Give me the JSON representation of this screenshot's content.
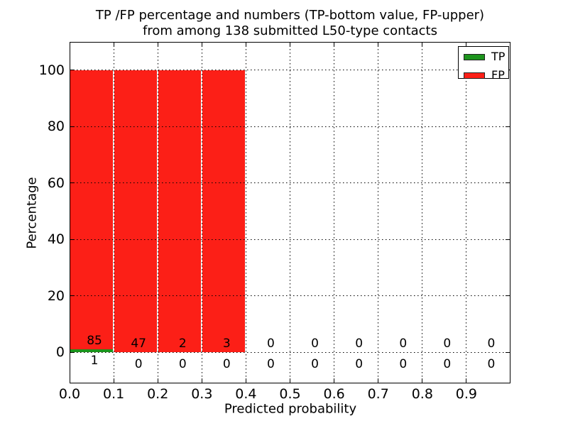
{
  "title_lines": [
    "TP /FP percentage and numbers (TP-bottom value, FP-upper)",
    "from among 138 submitted L50-type contacts"
  ],
  "legend": {
    "items": [
      {
        "label": "TP",
        "color": "#1d941d"
      },
      {
        "label": "FP",
        "color": "#fc1f17"
      }
    ]
  },
  "chart_data": {
    "type": "bar",
    "stacked": true,
    "title": "TP /FP percentage and numbers (TP-bottom value, FP-upper) from among 138 submitted L50-type contacts",
    "xlabel": "Predicted probability",
    "ylabel": "Percentage",
    "total_submitted_contacts": 138,
    "xlim": [
      0.0,
      1.0
    ],
    "ylim": [
      -11,
      110
    ],
    "grid": "dotted",
    "legend_position": "upper right",
    "bin_width": 0.1,
    "bin_starts": [
      0.0,
      0.1,
      0.2,
      0.3,
      0.4,
      0.5,
      0.6,
      0.7,
      0.8,
      0.9
    ],
    "x_tick_labels": [
      "0.0",
      "0.1",
      "0.2",
      "0.3",
      "0.4",
      "0.5",
      "0.6",
      "0.7",
      "0.8",
      "0.9"
    ],
    "y_tick_labels": [
      "0",
      "20",
      "40",
      "60",
      "80",
      "100"
    ],
    "series": [
      {
        "name": "TP",
        "color": "#1d941d",
        "counts": [
          1,
          0,
          0,
          0,
          0,
          0,
          0,
          0,
          0,
          0
        ],
        "pct": [
          1.16,
          0,
          0,
          0,
          0,
          0,
          0,
          0,
          0,
          0
        ]
      },
      {
        "name": "FP",
        "color": "#fc1f17",
        "counts": [
          85,
          47,
          2,
          3,
          0,
          0,
          0,
          0,
          0,
          0
        ],
        "pct": [
          98.84,
          100,
          100,
          100,
          0,
          0,
          0,
          0,
          0,
          0
        ]
      }
    ]
  }
}
